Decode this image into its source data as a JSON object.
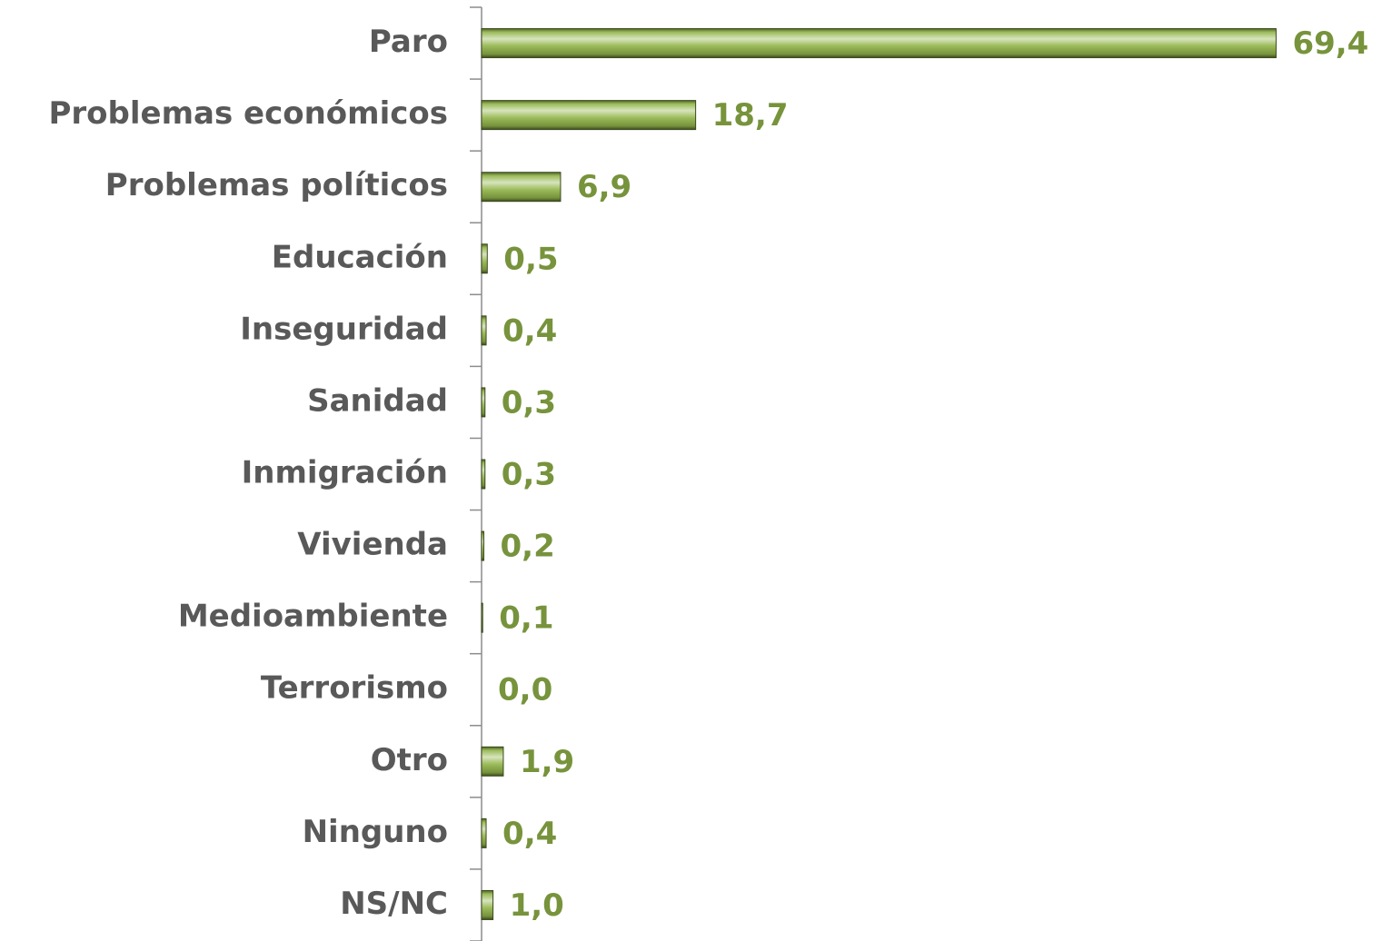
{
  "chart_data": {
    "type": "hbar",
    "categories": [
      "Paro",
      "Problemas económicos",
      "Problemas políticos",
      "Educación",
      "Inseguridad",
      "Sanidad",
      "Inmigración",
      "Vivienda",
      "Medioambiente",
      "Terrorismo",
      "Otro",
      "Ninguno",
      "NS/NC"
    ],
    "values": [
      69.4,
      18.7,
      6.9,
      0.5,
      0.4,
      0.3,
      0.3,
      0.2,
      0.1,
      0.0,
      1.9,
      0.4,
      1.0
    ],
    "value_labels": [
      "69,4",
      "18,7",
      "6,9",
      "0,5",
      "0,4",
      "0,3",
      "0,3",
      "0,2",
      "0,1",
      "0,0",
      "1,9",
      "0,4",
      "1,0"
    ],
    "color": "#9bbb59",
    "xlim": [
      0,
      70
    ]
  }
}
